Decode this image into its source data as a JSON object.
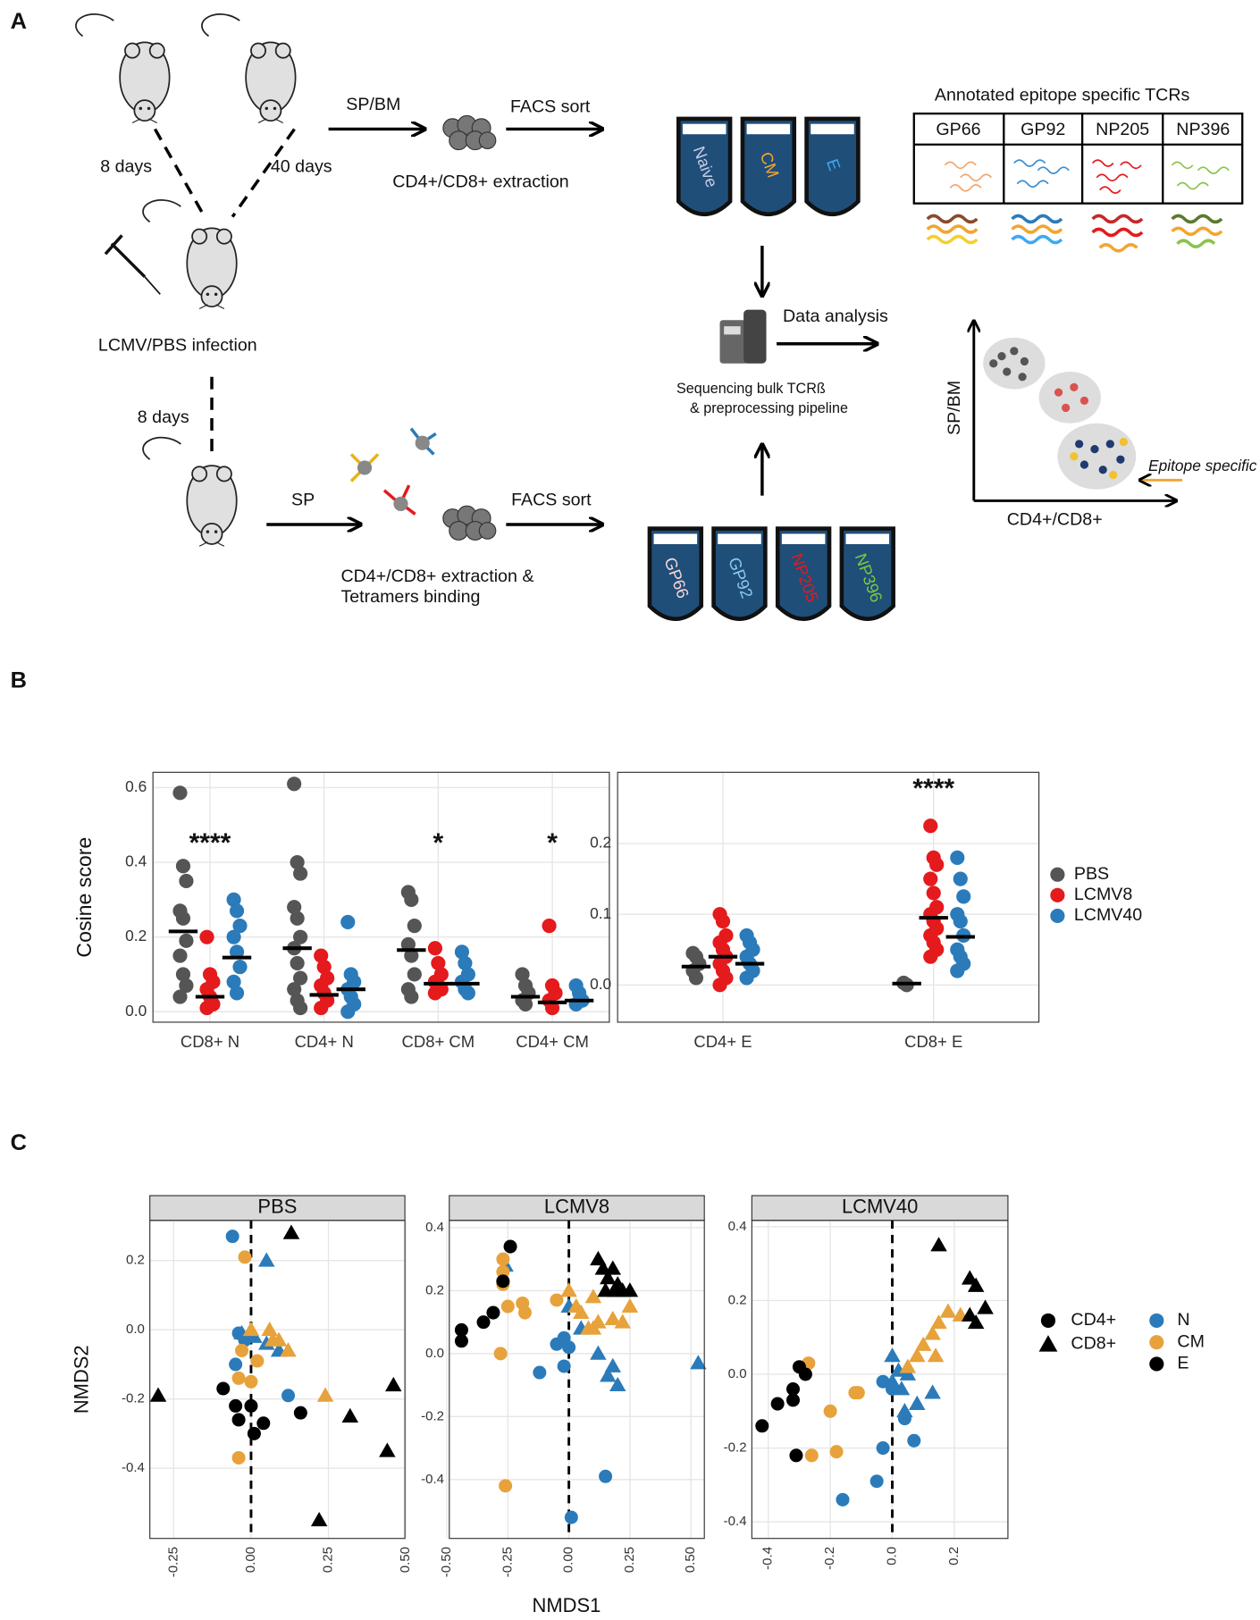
{
  "panel_a": {
    "label": "A",
    "mice": {
      "time_left": "8 days",
      "time_right": "40 days",
      "infection": "LCMV/PBS infection",
      "time_bottom": "8 days"
    },
    "top_route": {
      "tissue": "SP/BM",
      "sort": "FACS sort",
      "extraction": "CD4+/CD8+ extraction",
      "tubes": [
        "Naive",
        "CM",
        "E"
      ]
    },
    "bottom_route": {
      "tissue": "SP",
      "sort": "FACS sort",
      "extraction": [
        "CD4+/CD8+ extraction &",
        "Tetramers binding"
      ],
      "tubes": [
        "GP66",
        "GP92",
        "NP205",
        "NP396"
      ]
    },
    "sequencing": [
      "Sequencing bulk TCRß",
      "& preprocessing pipeline"
    ],
    "analysis": "Data analysis",
    "table": {
      "title": "Annotated epitope specific TCRs",
      "headers": [
        "GP66",
        "GP92",
        "NP205",
        "NP396"
      ]
    },
    "sketch": {
      "y_label": "SP/BM",
      "x_label": "CD4+/CD8+",
      "annotation": "Epitope specific"
    }
  },
  "panel_b_label": "B",
  "panel_c_label": "C",
  "panel_c_legend": {
    "shapes": [
      {
        "name": "CD4+",
        "shape": "circle"
      },
      {
        "name": "CD8+",
        "shape": "triangle"
      }
    ],
    "colors": [
      {
        "name": "N",
        "color": "#2b7bba"
      },
      {
        "name": "CM",
        "color": "#e7a23b"
      },
      {
        "name": "E",
        "color": "#000000"
      }
    ]
  },
  "chart_data": [
    {
      "type": "strip",
      "ylabel": "Cosine score",
      "categories": [
        "CD8+ N",
        "CD4+ N",
        "CD8+ CM",
        "CD4+ CM"
      ],
      "significance": [
        "****",
        null,
        "*",
        "*"
      ],
      "ylim": [
        -0.028,
        0.641
      ],
      "yticks": [
        {
          "value": 0,
          "label": "0.0"
        },
        0.2,
        0.4,
        0.6
      ],
      "grid": true,
      "series": [
        {
          "color": "#555555",
          "values": [
            [
              0.586,
              0.39,
              0.35,
              0.27,
              0.25,
              0.19,
              0.15,
              0.1,
              0.07,
              0.04
            ],
            [
              0.61,
              0.4,
              0.37,
              0.28,
              0.25,
              0.2,
              0.17,
              0.13,
              0.09,
              0.06,
              0.03,
              0.01
            ],
            [
              0.32,
              0.3,
              0.23,
              0.18,
              0.15,
              0.1,
              0.06,
              0.04
            ],
            [
              0.1,
              0.07,
              0.05,
              0.03,
              0.02
            ]
          ],
          "medians": [
            0.215,
            0.17,
            0.165,
            0.04
          ]
        },
        {
          "color": "#e41a1c",
          "values": [
            [
              0.2,
              0.1,
              0.08,
              0.06,
              0.04,
              0.02,
              0.01
            ],
            [
              0.15,
              0.12,
              0.09,
              0.07,
              0.05,
              0.03,
              0.01
            ],
            [
              0.17,
              0.13,
              0.1,
              0.08,
              0.07,
              0.06,
              0.05
            ],
            [
              0.23,
              0.07,
              0.05,
              0.03,
              0.01
            ]
          ],
          "medians": [
            0.04,
            0.045,
            0.075,
            0.025
          ]
        },
        {
          "color": "#2b7bba",
          "values": [
            [
              0.3,
              0.27,
              0.23,
              0.2,
              0.16,
              0.12,
              0.08,
              0.05
            ],
            [
              0.24,
              0.1,
              0.08,
              0.06,
              0.04,
              0.02,
              0.0
            ],
            [
              0.16,
              0.13,
              0.1,
              0.08,
              0.06,
              0.05
            ],
            [
              0.07,
              0.05,
              0.03,
              0.02
            ]
          ],
          "medians": [
            0.145,
            0.06,
            0.075,
            0.03
          ]
        }
      ]
    },
    {
      "type": "strip",
      "categories": [
        "CD4+ E",
        "CD8+ E"
      ],
      "significance": [
        null,
        "****"
      ],
      "ylim": [
        -0.0526,
        0.3007
      ],
      "yticks": [
        {
          "value": 0,
          "label": "0.0"
        },
        0.1,
        0.2
      ],
      "grid": true,
      "legend": "right",
      "series": [
        {
          "name": "PBS",
          "color": "#555555",
          "values": [
            [
              0.045,
              0.04,
              0.03,
              0.02,
              0.01
            ],
            [
              0.003,
              0.0
            ]
          ],
          "medians": [
            0.026,
            0.002
          ]
        },
        {
          "name": "LCMV8",
          "color": "#e41a1c",
          "values": [
            [
              0.1,
              0.09,
              0.07,
              0.06,
              0.05,
              0.04,
              0.03,
              0.02,
              0.01,
              0.0
            ],
            [
              0.225,
              0.18,
              0.17,
              0.15,
              0.13,
              0.11,
              0.1,
              0.09,
              0.08,
              0.07,
              0.06,
              0.05,
              0.04
            ]
          ],
          "medians": [
            0.04,
            0.095
          ]
        },
        {
          "name": "LCMV40",
          "color": "#2b7bba",
          "values": [
            [
              0.07,
              0.06,
              0.05,
              0.04,
              0.03,
              0.02,
              0.01
            ],
            [
              0.18,
              0.15,
              0.125,
              0.1,
              0.09,
              0.07,
              0.05,
              0.04,
              0.03,
              0.02
            ]
          ],
          "medians": [
            0.03,
            0.068
          ]
        }
      ]
    },
    {
      "type": "scatter",
      "title": "PBS",
      "ylabel": "NMDS2",
      "vline": 0,
      "xlim": [
        -0.327,
        0.497
      ],
      "xticks": [
        -0.25,
        {
          "value": 0,
          "label": "0.00"
        },
        0.25,
        {
          "value": 0.5,
          "label": "0.50"
        }
      ],
      "ylim": [
        -0.603,
        0.316
      ],
      "yticks": [
        -0.4,
        -0.2,
        {
          "value": 0,
          "label": "0.0"
        },
        0.2
      ],
      "grid": true,
      "series": [
        {
          "shape": "circle",
          "color": "#2b7bba",
          "x": [
            -0.06,
            -0.04,
            -0.05,
            0.12,
            -0.02
          ],
          "y": [
            0.27,
            -0.01,
            -0.1,
            -0.19,
            -0.03
          ]
        },
        {
          "shape": "triangle",
          "color": "#2b7bba",
          "x": [
            0.05,
            -0.03,
            0.01,
            0.05,
            0.09
          ],
          "y": [
            0.2,
            -0.01,
            -0.02,
            -0.04,
            -0.06
          ]
        },
        {
          "shape": "circle",
          "color": "#e7a23b",
          "x": [
            -0.02,
            -0.03,
            -0.04,
            0.0,
            -0.04,
            0.02
          ],
          "y": [
            0.21,
            -0.06,
            -0.14,
            -0.15,
            -0.37,
            -0.09
          ]
        },
        {
          "shape": "triangle",
          "color": "#e7a23b",
          "x": [
            0.0,
            0.06,
            0.07,
            0.09,
            0.12,
            0.24
          ],
          "y": [
            0.0,
            0.0,
            -0.03,
            -0.03,
            -0.06,
            -0.19
          ]
        },
        {
          "shape": "circle",
          "color": "#000000",
          "x": [
            -0.09,
            -0.05,
            -0.04,
            0.01,
            0.04,
            0.16,
            0.0
          ],
          "y": [
            -0.17,
            -0.22,
            -0.26,
            -0.3,
            -0.27,
            -0.24,
            -0.22
          ]
        },
        {
          "shape": "triangle",
          "color": "#000000",
          "x": [
            0.13,
            -0.3,
            0.46,
            0.32,
            0.44,
            0.22
          ],
          "y": [
            0.28,
            -0.19,
            -0.16,
            -0.25,
            -0.35,
            -0.55
          ]
        }
      ]
    },
    {
      "type": "scatter",
      "title": "LCMV8",
      "xlabel": "NMDS1",
      "vline": 0,
      "xlim": [
        -0.49,
        0.555
      ],
      "xticks": [
        {
          "value": -0.5,
          "label": "-0.50"
        },
        -0.25,
        {
          "value": 0,
          "label": "0.00"
        },
        0.25,
        {
          "value": 0.5,
          "label": "0.50"
        }
      ],
      "ylim": [
        -0.587,
        0.423
      ],
      "yticks": [
        -0.4,
        -0.2,
        {
          "value": 0,
          "label": "0.0"
        },
        0.2,
        0.4
      ],
      "grid": true,
      "series": [
        {
          "shape": "circle",
          "color": "#2b7bba",
          "x": [
            -0.02,
            -0.05,
            -0.02,
            -0.12,
            0.0,
            0.15,
            0.01
          ],
          "y": [
            0.05,
            0.03,
            -0.04,
            -0.06,
            0.02,
            -0.39,
            -0.52
          ]
        },
        {
          "shape": "triangle",
          "color": "#2b7bba",
          "x": [
            -0.26,
            0.0,
            0.05,
            0.12,
            0.18,
            0.2,
            0.53,
            0.16
          ],
          "y": [
            0.28,
            0.15,
            0.08,
            0.0,
            -0.04,
            -0.1,
            -0.03,
            -0.07
          ]
        },
        {
          "shape": "circle",
          "color": "#e7a23b",
          "x": [
            -0.27,
            -0.27,
            -0.27,
            -0.25,
            -0.19,
            -0.18,
            -0.05,
            -0.28,
            -0.26
          ],
          "y": [
            0.3,
            0.26,
            0.22,
            0.15,
            0.16,
            0.13,
            0.17,
            0.0,
            -0.42
          ]
        },
        {
          "shape": "triangle",
          "color": "#e7a23b",
          "x": [
            0.0,
            0.03,
            0.05,
            0.08,
            0.1,
            0.12,
            0.18,
            0.22,
            0.1,
            0.25
          ],
          "y": [
            0.2,
            0.15,
            0.13,
            0.08,
            0.08,
            0.1,
            0.11,
            0.1,
            0.18,
            0.15
          ]
        },
        {
          "shape": "circle",
          "color": "#000000",
          "x": [
            -0.44,
            -0.44,
            -0.35,
            -0.31,
            -0.27,
            -0.24
          ],
          "y": [
            0.075,
            0.04,
            0.1,
            0.13,
            0.23,
            0.34
          ]
        },
        {
          "shape": "triangle",
          "color": "#000000",
          "x": [
            0.12,
            0.14,
            0.16,
            0.18,
            0.2,
            0.15,
            0.19,
            0.22,
            0.25
          ],
          "y": [
            0.3,
            0.27,
            0.24,
            0.27,
            0.22,
            0.2,
            0.2,
            0.2,
            0.2
          ]
        }
      ]
    },
    {
      "type": "scatter",
      "title": "LCMV40",
      "vline": 0,
      "xlim": [
        -0.453,
        0.373
      ],
      "xticks": [
        -0.4,
        -0.2,
        {
          "value": 0,
          "label": "0.0"
        },
        0.2
      ],
      "ylim": [
        -0.445,
        0.417
      ],
      "yticks": [
        -0.4,
        -0.2,
        {
          "value": 0,
          "label": "0.0"
        },
        0.2,
        0.4
      ],
      "grid": true,
      "series": [
        {
          "shape": "circle",
          "color": "#2b7bba",
          "x": [
            -0.16,
            -0.05,
            -0.03,
            0.07,
            0.04,
            -0.03,
            0.0
          ],
          "y": [
            -0.34,
            -0.29,
            -0.2,
            -0.18,
            -0.12,
            -0.02,
            -0.04
          ]
        },
        {
          "shape": "triangle",
          "color": "#2b7bba",
          "x": [
            0.0,
            0.02,
            0.03,
            0.04,
            0.08,
            0.13,
            0.05,
            0.0
          ],
          "y": [
            -0.02,
            0.01,
            -0.04,
            -0.1,
            -0.08,
            -0.05,
            0.0,
            0.05
          ]
        },
        {
          "shape": "circle",
          "color": "#e7a23b",
          "x": [
            -0.27,
            -0.2,
            -0.12,
            -0.11,
            -0.26,
            -0.18
          ],
          "y": [
            0.03,
            -0.1,
            -0.05,
            -0.05,
            -0.22,
            -0.21
          ]
        },
        {
          "shape": "triangle",
          "color": "#e7a23b",
          "x": [
            0.08,
            0.1,
            0.13,
            0.15,
            0.18,
            0.22,
            0.05,
            0.14
          ],
          "y": [
            0.05,
            0.08,
            0.11,
            0.14,
            0.17,
            0.16,
            0.02,
            0.05
          ]
        },
        {
          "shape": "circle",
          "color": "#000000",
          "x": [
            -0.42,
            -0.37,
            -0.32,
            -0.3,
            -0.28,
            -0.32,
            -0.31
          ],
          "y": [
            -0.14,
            -0.08,
            -0.04,
            0.02,
            0.0,
            -0.07,
            -0.22
          ]
        },
        {
          "shape": "triangle",
          "color": "#000000",
          "x": [
            0.15,
            0.25,
            0.27,
            0.3,
            0.27,
            0.25
          ],
          "y": [
            0.35,
            0.26,
            0.24,
            0.18,
            0.14,
            0.16
          ]
        }
      ]
    }
  ]
}
